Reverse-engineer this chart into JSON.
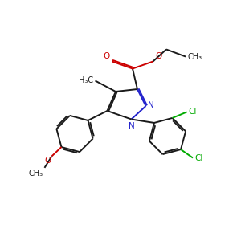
{
  "bg_color": "#ffffff",
  "bond_color": "#1a1a1a",
  "bond_width": 1.4,
  "N_color": "#2222cc",
  "O_color": "#cc0000",
  "Cl_color": "#00aa00",
  "text_color": "#1a1a1a",
  "figsize": [
    3.0,
    3.0
  ],
  "dpi": 100,
  "xlim": [
    0,
    10
  ],
  "ylim": [
    0,
    10
  ]
}
